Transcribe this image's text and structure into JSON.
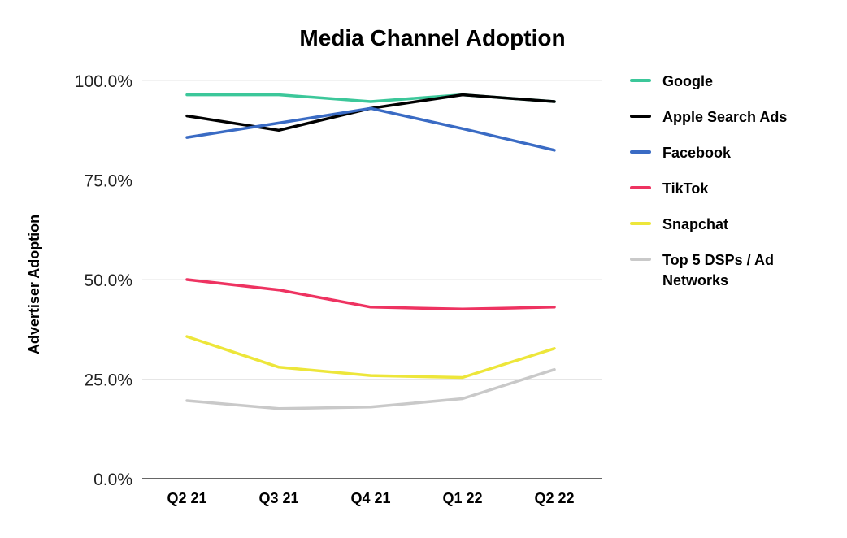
{
  "chart_data": {
    "type": "line",
    "title": "Media Channel Adoption",
    "xlabel": "",
    "ylabel": "Advertiser Adoption",
    "categories": [
      "Q2 21",
      "Q3 21",
      "Q4 21",
      "Q1 22",
      "Q2 22"
    ],
    "ylim": [
      0,
      100
    ],
    "yticks": [
      0,
      25,
      50,
      75,
      100
    ],
    "ytick_labels": [
      "0.0%",
      "25.0%",
      "50.0%",
      "75.0%",
      "100.0%"
    ],
    "grid": true,
    "legend": "right",
    "series": [
      {
        "name": "Google",
        "color": "#3cc79a",
        "values": [
          96.4,
          96.4,
          94.7,
          96.4,
          94.7
        ]
      },
      {
        "name": "Apple Search Ads",
        "color": "#000000",
        "values": [
          91.1,
          87.5,
          93.0,
          96.4,
          94.7
        ]
      },
      {
        "name": "Facebook",
        "color": "#3a6bc4",
        "values": [
          85.7,
          89.3,
          93.0,
          87.9,
          82.5
        ]
      },
      {
        "name": "TikTok",
        "color": "#ee3361",
        "values": [
          50.0,
          47.4,
          43.1,
          42.6,
          43.1
        ]
      },
      {
        "name": "Snapchat",
        "color": "#ede63a",
        "values": [
          35.7,
          28.0,
          25.9,
          25.4,
          32.7
        ]
      },
      {
        "name": "Top 5 DSPs / Ad Networks",
        "color": "#c9c9c9",
        "legend_lines": [
          "Top 5 DSPs / Ad",
          "Networks"
        ],
        "values": [
          19.6,
          17.6,
          18.0,
          20.1,
          27.4
        ]
      }
    ]
  }
}
